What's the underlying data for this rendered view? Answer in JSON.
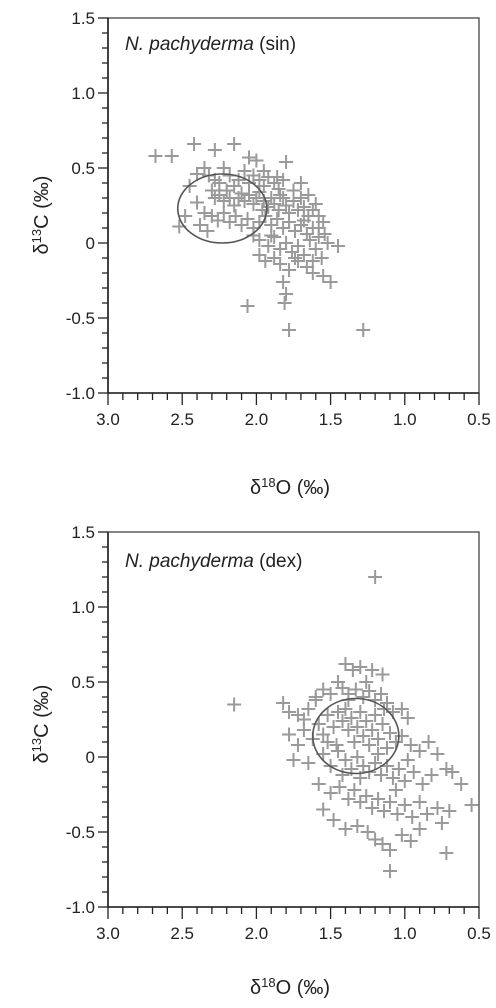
{
  "chart_data": [
    {
      "type": "scatter",
      "title_italic": "N. pachyderma",
      "title_plain": "(sin)",
      "xlabel": {
        "main": "δ",
        "sup": "18",
        "rest": "O (‰)"
      },
      "ylabel": {
        "main": "δ",
        "sup": "13",
        "rest": "C (‰)"
      },
      "xlim": [
        3.0,
        0.5
      ],
      "x_reversed": true,
      "ylim": [
        -1.0,
        1.5
      ],
      "xticks": [
        "3.0",
        "2.5",
        "2.0",
        "1.5",
        "1.0",
        "0.5"
      ],
      "yticks": [
        "1.5",
        "1.0",
        "0.5",
        "0",
        "-0.5",
        "-1.0"
      ],
      "grid": false,
      "marker": "plus",
      "marker_color": "#9a9a9a",
      "ellipse": {
        "cx": 2.23,
        "cy": 0.23,
        "rx": 0.3,
        "ry": 0.23
      },
      "points": [
        [
          2.68,
          0.58
        ],
        [
          2.57,
          0.58
        ],
        [
          2.42,
          0.66
        ],
        [
          2.28,
          0.62
        ],
        [
          2.15,
          0.66
        ],
        [
          2.05,
          0.57
        ],
        [
          2.0,
          0.55
        ],
        [
          2.52,
          0.11
        ],
        [
          2.48,
          0.18
        ],
        [
          2.45,
          0.38
        ],
        [
          2.4,
          0.46
        ],
        [
          2.35,
          0.5
        ],
        [
          2.32,
          0.45
        ],
        [
          2.28,
          0.42
        ],
        [
          2.25,
          0.4
        ],
        [
          2.22,
          0.5
        ],
        [
          2.18,
          0.45
        ],
        [
          2.15,
          0.38
        ],
        [
          2.12,
          0.42
        ],
        [
          2.08,
          0.48
        ],
        [
          2.05,
          0.4
        ],
        [
          2.02,
          0.45
        ],
        [
          1.98,
          0.42
        ],
        [
          1.95,
          0.38
        ],
        [
          1.92,
          0.44
        ],
        [
          1.88,
          0.4
        ],
        [
          1.85,
          0.36
        ],
        [
          1.82,
          0.42
        ],
        [
          1.8,
          0.54
        ],
        [
          2.3,
          0.35
        ],
        [
          2.28,
          0.3
        ],
        [
          2.25,
          0.32
        ],
        [
          2.22,
          0.28
        ],
        [
          2.2,
          0.35
        ],
        [
          2.18,
          0.3
        ],
        [
          2.15,
          0.25
        ],
        [
          2.12,
          0.3
        ],
        [
          2.1,
          0.33
        ],
        [
          2.08,
          0.28
        ],
        [
          2.05,
          0.32
        ],
        [
          2.02,
          0.26
        ],
        [
          2.0,
          0.3
        ],
        [
          1.98,
          0.34
        ],
        [
          1.95,
          0.28
        ],
        [
          1.92,
          0.24
        ],
        [
          1.9,
          0.3
        ],
        [
          1.88,
          0.26
        ],
        [
          1.85,
          0.22
        ],
        [
          1.82,
          0.3
        ],
        [
          1.8,
          0.25
        ],
        [
          1.78,
          0.2
        ],
        [
          1.75,
          0.28
        ],
        [
          1.72,
          0.22
        ],
        [
          1.7,
          0.3
        ],
        [
          1.68,
          0.24
        ],
        [
          1.65,
          0.18
        ],
        [
          1.62,
          0.22
        ],
        [
          1.6,
          0.26
        ],
        [
          1.58,
          0.18
        ],
        [
          1.55,
          0.14
        ],
        [
          2.35,
          0.2
        ],
        [
          2.3,
          0.18
        ],
        [
          2.26,
          0.15
        ],
        [
          2.22,
          0.2
        ],
        [
          2.18,
          0.14
        ],
        [
          2.14,
          0.18
        ],
        [
          2.1,
          0.12
        ],
        [
          2.06,
          0.16
        ],
        [
          2.02,
          0.1
        ],
        [
          1.98,
          0.14
        ],
        [
          1.94,
          0.18
        ],
        [
          1.9,
          0.12
        ],
        [
          1.86,
          0.16
        ],
        [
          1.82,
          0.1
        ],
        [
          1.78,
          0.14
        ],
        [
          1.74,
          0.08
        ],
        [
          1.7,
          0.12
        ],
        [
          1.66,
          0.06
        ],
        [
          1.62,
          0.1
        ],
        [
          1.58,
          0.04
        ],
        [
          1.54,
          0.06
        ],
        [
          2.02,
          0.05
        ],
        [
          1.98,
          0.02
        ],
        [
          1.92,
          -0.02
        ],
        [
          1.88,
          0.04
        ],
        [
          1.84,
          -0.04
        ],
        [
          1.8,
          0.0
        ],
        [
          1.76,
          -0.06
        ],
        [
          1.72,
          -0.02
        ],
        [
          1.68,
          -0.08
        ],
        [
          1.64,
          0.02
        ],
        [
          1.6,
          -0.04
        ],
        [
          1.56,
          -0.1
        ],
        [
          1.52,
          0.0
        ],
        [
          1.45,
          -0.02
        ],
        [
          1.88,
          -0.1
        ],
        [
          1.84,
          -0.14
        ],
        [
          1.78,
          -0.18
        ],
        [
          1.72,
          -0.12
        ],
        [
          1.66,
          -0.16
        ],
        [
          1.62,
          -0.2
        ],
        [
          1.55,
          -0.22
        ],
        [
          1.5,
          -0.26
        ],
        [
          1.98,
          -0.08
        ],
        [
          1.94,
          -0.12
        ],
        [
          1.82,
          -0.26
        ],
        [
          1.8,
          -0.34
        ],
        [
          1.81,
          -0.4
        ],
        [
          2.06,
          -0.42
        ],
        [
          1.78,
          -0.58
        ],
        [
          1.28,
          -0.58
        ],
        [
          1.7,
          0.4
        ],
        [
          1.75,
          0.35
        ],
        [
          1.65,
          0.32
        ],
        [
          1.9,
          0.05
        ],
        [
          2.4,
          0.27
        ],
        [
          2.38,
          0.12
        ],
        [
          2.33,
          0.08
        ],
        [
          1.95,
          0.48
        ],
        [
          1.86,
          0.44
        ],
        [
          1.74,
          -0.1
        ],
        [
          1.68,
          0.15
        ],
        [
          1.62,
          -0.12
        ],
        [
          1.58,
          0.1
        ],
        [
          1.84,
          0.32
        ],
        [
          1.96,
          0.22
        ]
      ]
    },
    {
      "type": "scatter",
      "title_italic": "N. pachyderma",
      "title_plain": "(dex)",
      "xlabel": {
        "main": "δ",
        "sup": "18",
        "rest": "O (‰)"
      },
      "ylabel": {
        "main": "δ",
        "sup": "13",
        "rest": "C (‰)"
      },
      "xlim": [
        3.0,
        0.5
      ],
      "x_reversed": true,
      "ylim": [
        -1.0,
        1.5
      ],
      "xticks": [
        "3.0",
        "2.5",
        "2.0",
        "1.5",
        "1.0",
        "0.5"
      ],
      "yticks": [
        "1.5",
        "1.0",
        "0.5",
        "0",
        "-0.5",
        "-1.0"
      ],
      "grid": false,
      "marker": "plus",
      "marker_color": "#9a9a9a",
      "ellipse": {
        "cx": 1.33,
        "cy": 0.14,
        "rx": 0.29,
        "ry": 0.25
      },
      "points": [
        [
          1.2,
          1.2
        ],
        [
          2.15,
          0.35
        ],
        [
          1.4,
          0.62
        ],
        [
          1.35,
          0.58
        ],
        [
          1.3,
          0.6
        ],
        [
          1.22,
          0.58
        ],
        [
          1.15,
          0.55
        ],
        [
          1.82,
          0.36
        ],
        [
          1.78,
          0.3
        ],
        [
          1.72,
          0.28
        ],
        [
          1.65,
          0.32
        ],
        [
          1.6,
          0.38
        ],
        [
          1.55,
          0.45
        ],
        [
          1.5,
          0.42
        ],
        [
          1.45,
          0.5
        ],
        [
          1.42,
          0.46
        ],
        [
          1.38,
          0.42
        ],
        [
          1.33,
          0.45
        ],
        [
          1.28,
          0.4
        ],
        [
          1.24,
          0.44
        ],
        [
          1.2,
          0.38
        ],
        [
          1.16,
          0.42
        ],
        [
          1.12,
          0.36
        ],
        [
          1.08,
          0.3
        ],
        [
          1.02,
          0.32
        ],
        [
          0.98,
          0.26
        ],
        [
          1.78,
          0.15
        ],
        [
          1.72,
          0.08
        ],
        [
          1.68,
          0.18
        ],
        [
          1.62,
          0.12
        ],
        [
          1.58,
          0.22
        ],
        [
          1.55,
          0.15
        ],
        [
          1.52,
          0.28
        ],
        [
          1.48,
          0.2
        ],
        [
          1.45,
          0.3
        ],
        [
          1.42,
          0.24
        ],
        [
          1.4,
          0.32
        ],
        [
          1.38,
          0.18
        ],
        [
          1.36,
          0.26
        ],
        [
          1.34,
          0.1
        ],
        [
          1.32,
          0.2
        ],
        [
          1.3,
          0.3
        ],
        [
          1.28,
          0.14
        ],
        [
          1.26,
          0.24
        ],
        [
          1.24,
          0.08
        ],
        [
          1.22,
          0.18
        ],
        [
          1.2,
          0.28
        ],
        [
          1.18,
          0.12
        ],
        [
          1.15,
          0.22
        ],
        [
          1.12,
          0.06
        ],
        [
          1.1,
          0.16
        ],
        [
          1.06,
          0.1
        ],
        [
          1.02,
          0.14
        ],
        [
          0.96,
          0.08
        ],
        [
          0.9,
          0.04
        ],
        [
          0.84,
          0.1
        ],
        [
          0.78,
          0.02
        ],
        [
          1.75,
          -0.02
        ],
        [
          1.65,
          -0.04
        ],
        [
          1.55,
          0.02
        ],
        [
          1.5,
          -0.06
        ],
        [
          1.45,
          0.04
        ],
        [
          1.4,
          -0.02
        ],
        [
          1.36,
          -0.08
        ],
        [
          1.32,
          0.0
        ],
        [
          1.28,
          -0.06
        ],
        [
          1.24,
          -0.1
        ],
        [
          1.2,
          -0.04
        ],
        [
          1.16,
          -0.12
        ],
        [
          1.12,
          -0.06
        ],
        [
          1.08,
          -0.14
        ],
        [
          1.04,
          -0.08
        ],
        [
          1.0,
          -0.16
        ],
        [
          0.94,
          -0.1
        ],
        [
          0.88,
          -0.18
        ],
        [
          0.82,
          -0.12
        ],
        [
          0.72,
          -0.08
        ],
        [
          0.68,
          -0.1
        ],
        [
          1.58,
          -0.18
        ],
        [
          1.5,
          -0.24
        ],
        [
          1.44,
          -0.2
        ],
        [
          1.38,
          -0.28
        ],
        [
          1.34,
          -0.22
        ],
        [
          1.3,
          -0.3
        ],
        [
          1.26,
          -0.26
        ],
        [
          1.22,
          -0.34
        ],
        [
          1.18,
          -0.28
        ],
        [
          1.14,
          -0.36
        ],
        [
          1.1,
          -0.3
        ],
        [
          1.05,
          -0.38
        ],
        [
          1.0,
          -0.32
        ],
        [
          0.95,
          -0.4
        ],
        [
          0.9,
          -0.3
        ],
        [
          0.85,
          -0.38
        ],
        [
          0.78,
          -0.34
        ],
        [
          0.7,
          -0.36
        ],
        [
          0.55,
          -0.32
        ],
        [
          1.55,
          -0.35
        ],
        [
          1.48,
          -0.42
        ],
        [
          1.4,
          -0.48
        ],
        [
          1.32,
          -0.46
        ],
        [
          1.25,
          -0.5
        ],
        [
          1.2,
          -0.55
        ],
        [
          1.15,
          -0.58
        ],
        [
          1.1,
          -0.62
        ],
        [
          1.02,
          -0.52
        ],
        [
          0.96,
          -0.56
        ],
        [
          0.9,
          -0.48
        ],
        [
          0.75,
          -0.44
        ],
        [
          0.72,
          -0.64
        ],
        [
          1.1,
          -0.76
        ],
        [
          1.6,
          0.4
        ],
        [
          1.68,
          0.25
        ],
        [
          1.46,
          0.08
        ],
        [
          1.42,
          -0.12
        ],
        [
          1.18,
          0.02
        ],
        [
          1.14,
          0.32
        ],
        [
          1.06,
          -0.22
        ],
        [
          0.62,
          -0.18
        ],
        [
          1.26,
          0.5
        ],
        [
          1.38,
          0.38
        ],
        [
          1.52,
          0.1
        ],
        [
          1.3,
          -0.14
        ],
        [
          0.98,
          -0.02
        ]
      ]
    }
  ]
}
